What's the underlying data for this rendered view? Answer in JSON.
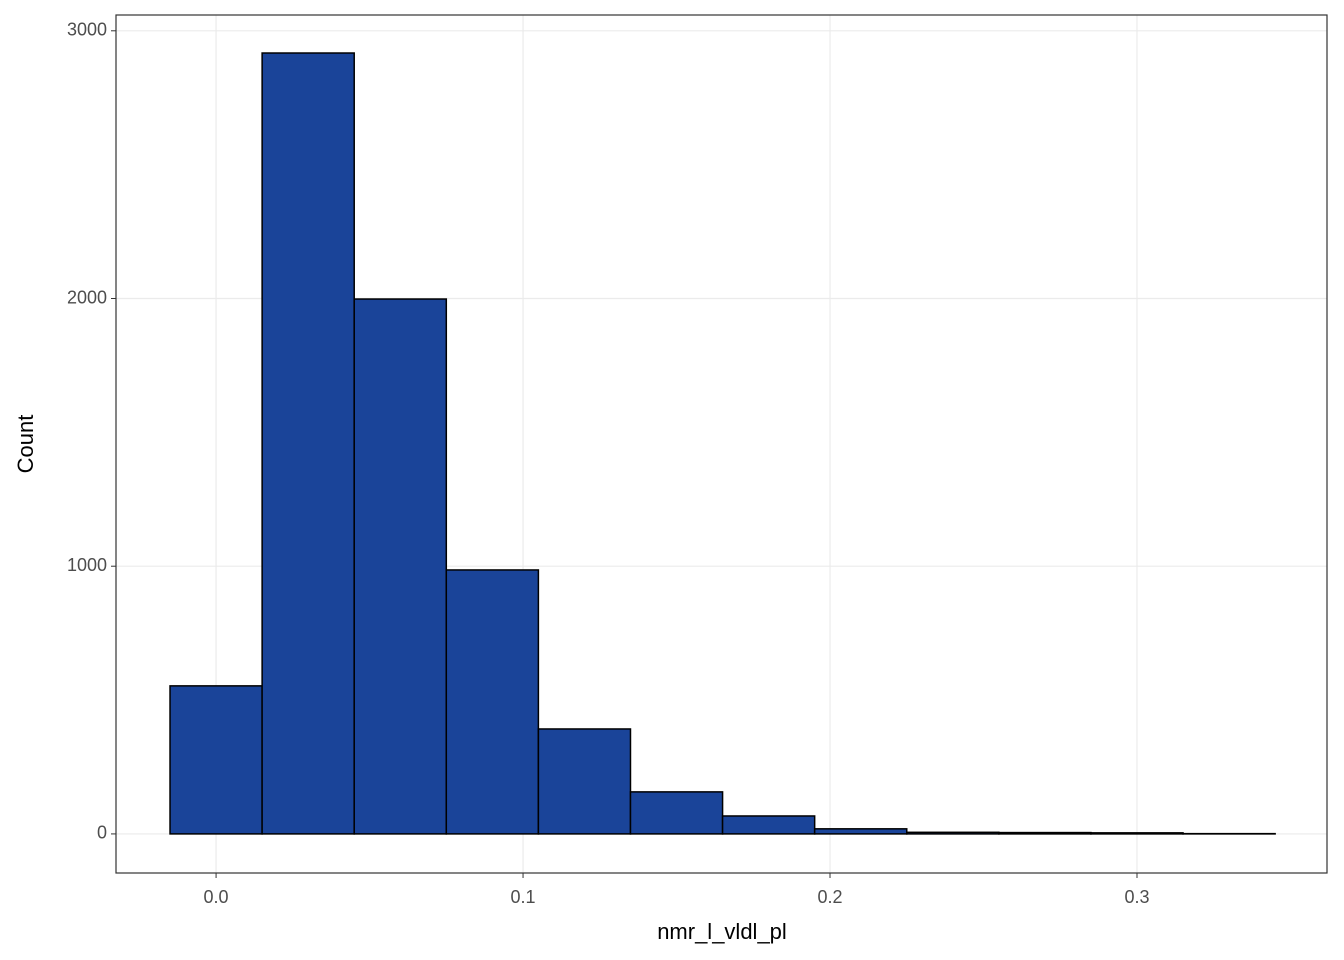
{
  "chart_data": {
    "type": "histogram",
    "x_label": "nmr_l_vldl_pl",
    "y_label": "Count",
    "bins": [
      -0.015,
      0.015,
      0.045,
      0.075,
      0.105,
      0.135,
      0.165,
      0.195,
      0.225,
      0.255,
      0.285,
      0.315,
      0.345
    ],
    "values": [
      553,
      2917,
      1998,
      986,
      392,
      157,
      67,
      19,
      6,
      5,
      4,
      1
    ],
    "color": "#1a4499",
    "edge_color": "#000000",
    "xlim": [
      -0.0326,
      0.3619
    ],
    "ylim": [
      -146,
      3059
    ],
    "xticks": [
      {
        "value": 0,
        "label": "0.0"
      },
      0.1,
      0.2,
      0.3
    ],
    "yticks": [
      0,
      1000,
      2000,
      3000
    ],
    "grid": true
  }
}
